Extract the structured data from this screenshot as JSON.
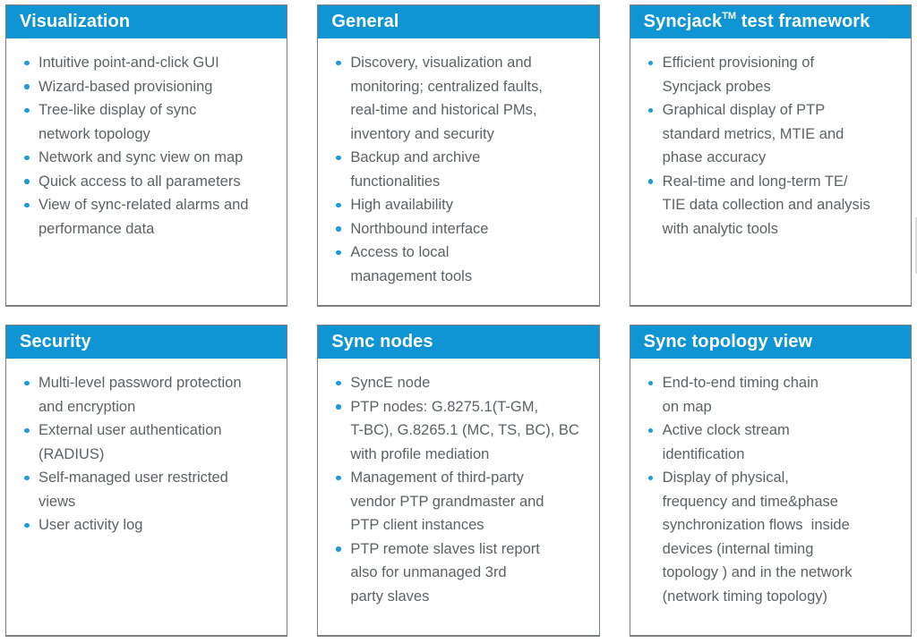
{
  "colors": {
    "header_blue": "#0f95d3",
    "bullet_blue": "#1b9cd8",
    "text_gray": "#5d6165",
    "title_white": "#ffffff",
    "border_gray": "#7c7e80"
  },
  "cards": [
    {
      "title": "Visualization",
      "bullets": [
        "Intuitive point-and-click GUI",
        "Wizard-based provisioning",
        "Tree-like display of sync\nnetwork topology",
        "Network and sync view on map",
        "Quick access to all parameters",
        "View of sync-related alarms and\nperformance data"
      ]
    },
    {
      "title": "General",
      "bullets": [
        "Discovery, visualization and\nmonitoring; centralized faults,\nreal-time and historical PMs,\ninventory and security",
        "Backup and archive\nfunctionalities",
        "High availability",
        "Northbound interface",
        "Access to local\nmanagement tools"
      ]
    },
    {
      "title_pre": "Syncjack",
      "title_tm": "TM",
      "title_post": " test framework",
      "bullets": [
        "Efficient provisioning of\nSyncjack probes",
        "Graphical display of PTP\nstandard metrics, MTIE and\nphase accuracy",
        "Real-time and long-term TE/\nTIE data collection and analysis\nwith analytic tools"
      ]
    },
    {
      "title": "Security",
      "bullets": [
        "Multi-level password protection\nand encryption",
        "External user authentication\n(RADIUS)",
        "Self-managed user restricted\nviews",
        "User activity log"
      ]
    },
    {
      "title": "Sync nodes",
      "bullets": [
        "SyncE node",
        "PTP nodes: G.8275.1(T-GM,\nT-BC), G.8265.1 (MC, TS, BC), BC\nwith profile mediation",
        "Management of third-party\nvendor PTP grandmaster and\nPTP client instances",
        "PTP remote slaves list report\nalso for unmanaged 3rd\nparty slaves"
      ]
    },
    {
      "title": "Sync topology view",
      "bullets": [
        "End-to-end timing chain\non map",
        "Active clock stream\nidentification",
        "Display of physical,\nfrequency and time&phase\nsynchronization flows  inside\ndevices (internal timing\ntopology ) and in the network\n(network timing topology)"
      ]
    }
  ]
}
